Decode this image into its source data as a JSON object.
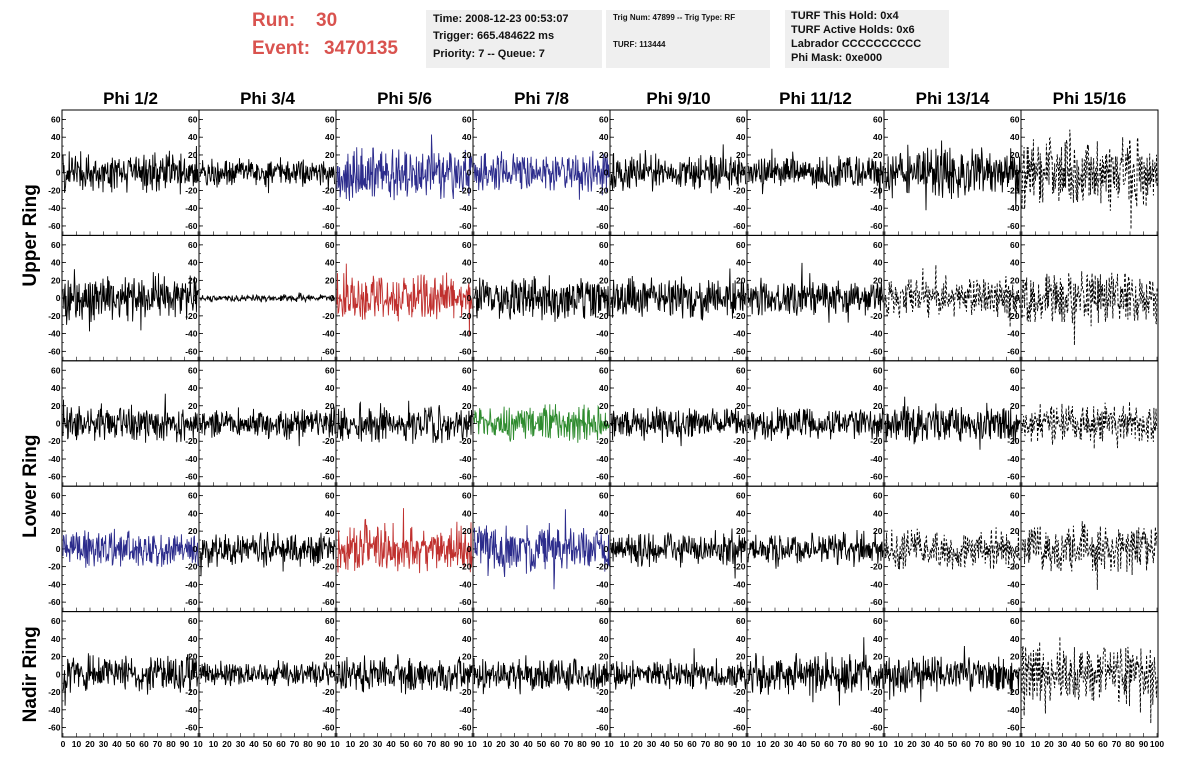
{
  "header": {
    "run_label": "Run:",
    "run_value": "30",
    "event_label": "Event:",
    "event_value": "3470135"
  },
  "info": {
    "time": "Time: 2008-12-23 00:53:07",
    "trigger": "Trigger: 665.484622 ms",
    "priority": "Priority: 7 -- Queue: 7",
    "trig_num": "Trig Num: 47899 -- Trig Type: RF",
    "turf": "TURF: 113444",
    "turf_this_hold": "TURF This Hold: 0x4",
    "turf_active_holds": "TURF Active Holds: 0x6",
    "labrador": "Labrador CCCCCCCCCC",
    "phi_mask": "Phi Mask: 0xe000"
  },
  "chart_data": {
    "type": "line",
    "columns": [
      "Phi 1/2",
      "Phi 3/4",
      "Phi 5/6",
      "Phi 7/8",
      "Phi 9/10",
      "Phi 11/12",
      "Phi 13/14",
      "Phi 15/16"
    ],
    "rows": [
      "Upper Ring",
      "Upper Ring",
      "Lower Ring",
      "Lower Ring",
      "Nadir Ring"
    ],
    "row_titles": [
      "Upper Ring",
      "Lower Ring",
      "Nadir Ring"
    ],
    "ylim": [
      -65,
      65
    ],
    "yticks": [
      -60,
      -40,
      -20,
      0,
      20,
      40,
      60
    ],
    "xlim": [
      0,
      100
    ],
    "xticks": [
      0,
      10,
      20,
      30,
      40,
      50,
      60,
      70,
      80,
      90,
      100
    ],
    "xtick_labels_first": [
      "0",
      "10",
      "20",
      "30",
      "40",
      "50",
      "60",
      "70",
      "80",
      "90",
      "10"
    ],
    "xtick_labels_mid": [
      "10",
      "20",
      "30",
      "40",
      "50",
      "60",
      "70",
      "80",
      "90",
      "10"
    ],
    "xtick_labels_last": [
      "10",
      "20",
      "30",
      "40",
      "50",
      "60",
      "70",
      "80",
      "90",
      "100"
    ],
    "colors": {
      "default": "#000000",
      "blue": "#2c2c8c",
      "red": "#c0302e",
      "green": "#2e8b2e"
    },
    "panels": [
      [
        {
          "color": "default",
          "amp": 16,
          "style": "solid"
        },
        {
          "color": "default",
          "amp": 11,
          "style": "solid"
        },
        {
          "color": "blue",
          "amp": 22,
          "style": "solid"
        },
        {
          "color": "blue",
          "amp": 16,
          "style": "solid"
        },
        {
          "color": "default",
          "amp": 15,
          "style": "solid"
        },
        {
          "color": "default",
          "amp": 13,
          "style": "solid"
        },
        {
          "color": "default",
          "amp": 20,
          "style": "solid"
        },
        {
          "color": "default",
          "amp": 27,
          "style": "dashed"
        }
      ],
      [
        {
          "color": "default",
          "amp": 18,
          "style": "solid"
        },
        {
          "color": "default",
          "amp": 3,
          "style": "solid"
        },
        {
          "color": "red",
          "amp": 19,
          "style": "solid"
        },
        {
          "color": "default",
          "amp": 17,
          "style": "solid"
        },
        {
          "color": "default",
          "amp": 16,
          "style": "solid"
        },
        {
          "color": "default",
          "amp": 15,
          "style": "solid"
        },
        {
          "color": "default",
          "amp": 15,
          "style": "dashed"
        },
        {
          "color": "default",
          "amp": 22,
          "style": "dashed"
        }
      ],
      [
        {
          "color": "default",
          "amp": 14,
          "style": "solid"
        },
        {
          "color": "default",
          "amp": 12,
          "style": "solid"
        },
        {
          "color": "default",
          "amp": 15,
          "style": "solid"
        },
        {
          "color": "green",
          "amp": 15,
          "style": "solid"
        },
        {
          "color": "default",
          "amp": 13,
          "style": "solid"
        },
        {
          "color": "default",
          "amp": 13,
          "style": "solid"
        },
        {
          "color": "default",
          "amp": 16,
          "style": "solid"
        },
        {
          "color": "default",
          "amp": 16,
          "style": "dashed"
        }
      ],
      [
        {
          "color": "blue",
          "amp": 15,
          "style": "solid"
        },
        {
          "color": "default",
          "amp": 14,
          "style": "solid"
        },
        {
          "color": "red",
          "amp": 20,
          "style": "solid"
        },
        {
          "color": "blue",
          "amp": 20,
          "style": "solid"
        },
        {
          "color": "default",
          "amp": 14,
          "style": "solid"
        },
        {
          "color": "default",
          "amp": 13,
          "style": "solid"
        },
        {
          "color": "default",
          "amp": 16,
          "style": "dashed"
        },
        {
          "color": "default",
          "amp": 19,
          "style": "dashed"
        }
      ],
      [
        {
          "color": "default",
          "amp": 15,
          "style": "solid"
        },
        {
          "color": "default",
          "amp": 10,
          "style": "solid"
        },
        {
          "color": "default",
          "amp": 15,
          "style": "solid"
        },
        {
          "color": "default",
          "amp": 13,
          "style": "solid"
        },
        {
          "color": "default",
          "amp": 12,
          "style": "solid"
        },
        {
          "color": "default",
          "amp": 16,
          "style": "solid"
        },
        {
          "color": "default",
          "amp": 14,
          "style": "solid"
        },
        {
          "color": "default",
          "amp": 24,
          "style": "dashed"
        }
      ]
    ]
  }
}
